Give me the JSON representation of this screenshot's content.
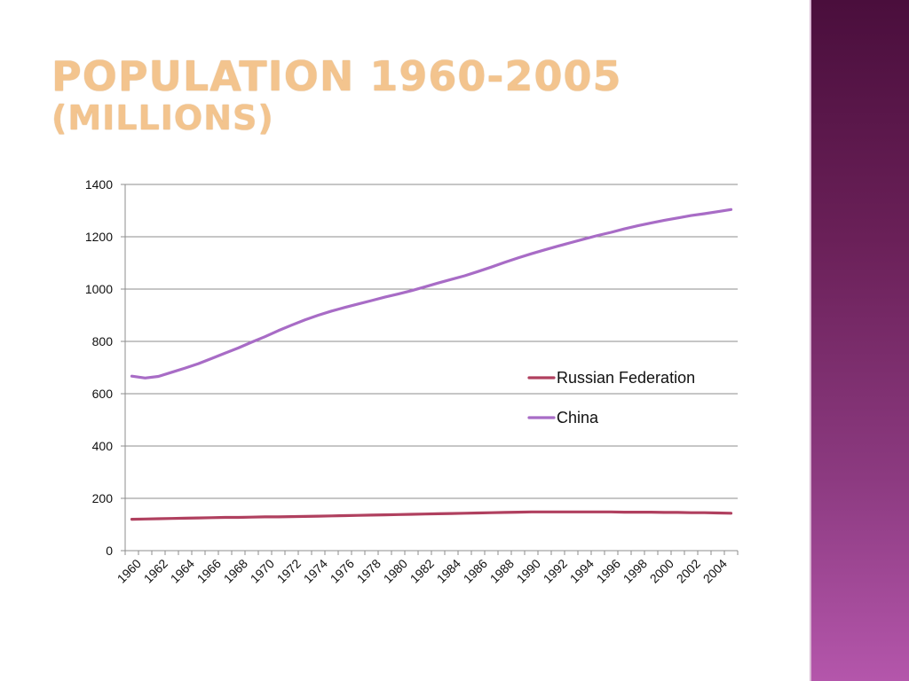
{
  "slide": {
    "title": "POPULATION 1960-2005",
    "subtitle": "(MILLIONS)"
  },
  "colors": {
    "title": "#f3c48e",
    "russia": "#b0405f",
    "china": "#a86cc6",
    "sidebar": "#6a2058"
  },
  "chart_data": {
    "type": "line",
    "title": "",
    "xlabel": "",
    "ylabel": "",
    "ylim": [
      0,
      1400
    ],
    "yticks": [
      0,
      200,
      400,
      600,
      800,
      1000,
      1200,
      1400
    ],
    "grid": true,
    "legend_position": "right",
    "x": [
      1960,
      1961,
      1962,
      1963,
      1964,
      1965,
      1966,
      1967,
      1968,
      1969,
      1970,
      1971,
      1972,
      1973,
      1974,
      1975,
      1976,
      1977,
      1978,
      1979,
      1980,
      1981,
      1982,
      1983,
      1984,
      1985,
      1986,
      1987,
      1988,
      1989,
      1990,
      1991,
      1992,
      1993,
      1994,
      1995,
      1996,
      1997,
      1998,
      1999,
      2000,
      2001,
      2002,
      2003,
      2004,
      2005
    ],
    "xtick_labels": [
      "1960",
      "1962",
      "1964",
      "1966",
      "1968",
      "1970",
      "1972",
      "1974",
      "1976",
      "1978",
      "1980",
      "1982",
      "1984",
      "1986",
      "1988",
      "1990",
      "1992",
      "1994",
      "1996",
      "1998",
      "2000",
      "2002",
      "2004"
    ],
    "series": [
      {
        "name": "Russian Federation",
        "values": [
          120,
          121,
          122,
          123,
          124,
          125,
          126,
          127,
          127,
          128,
          129,
          129,
          130,
          131,
          132,
          133,
          134,
          135,
          136,
          137,
          138,
          139,
          140,
          141,
          142,
          143,
          144,
          145,
          146,
          147,
          148,
          148,
          148,
          148,
          148,
          148,
          148,
          147,
          147,
          147,
          146,
          146,
          145,
          145,
          144,
          143
        ]
      },
      {
        "name": "China",
        "values": [
          667,
          660,
          666,
          682,
          698,
          715,
          735,
          755,
          775,
          797,
          818,
          841,
          862,
          882,
          900,
          916,
          930,
          943,
          956,
          969,
          981,
          994,
          1008,
          1023,
          1037,
          1051,
          1067,
          1084,
          1102,
          1119,
          1135,
          1150,
          1164,
          1178,
          1192,
          1205,
          1217,
          1230,
          1242,
          1253,
          1263,
          1272,
          1281,
          1288,
          1296,
          1304
        ]
      }
    ]
  }
}
